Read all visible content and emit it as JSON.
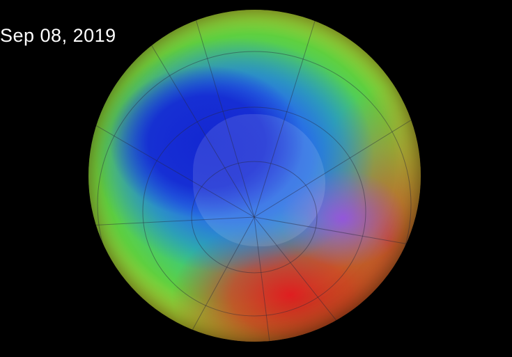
{
  "date_label": "Sep 08, 2019",
  "colors": {
    "background": "#000000",
    "low_ozone": "#2030d0",
    "pole": "#9650e6",
    "mid": "#30c890",
    "high_ozone": "#e61e1e"
  }
}
